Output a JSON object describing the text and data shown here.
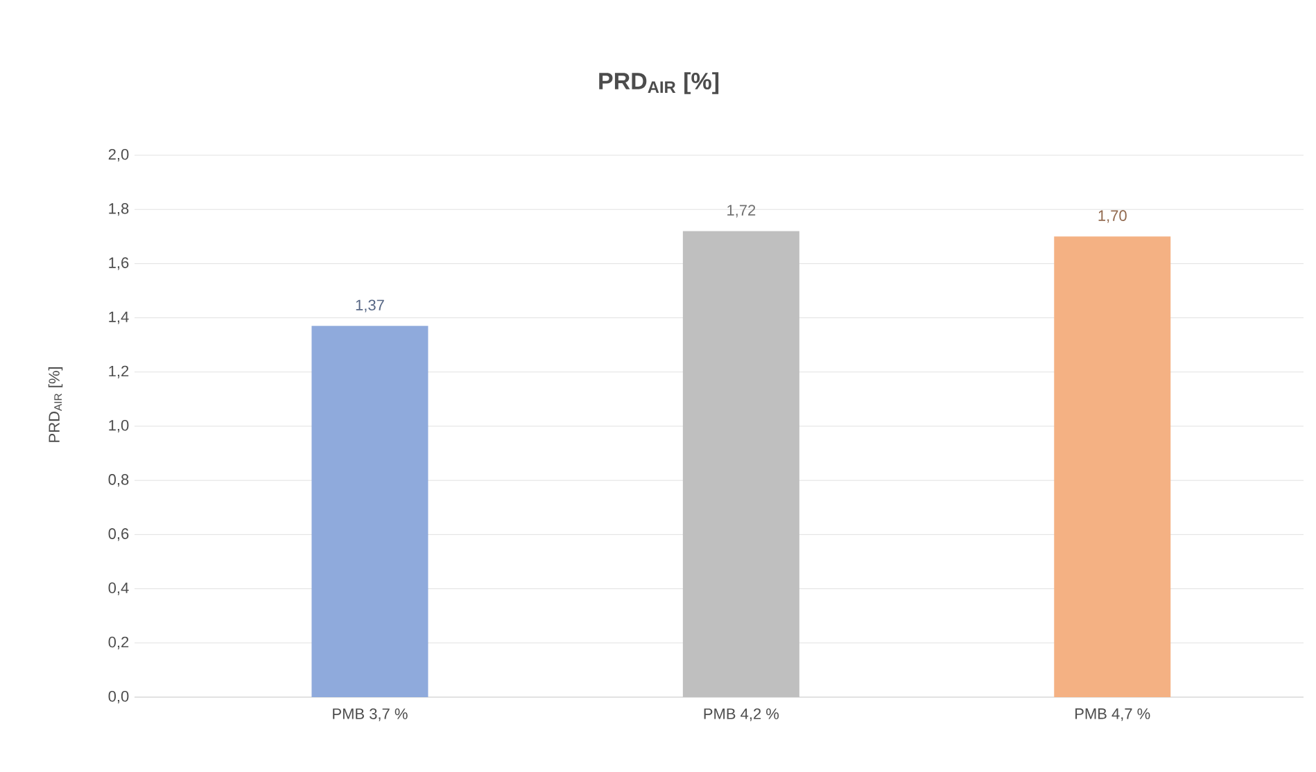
{
  "chart_data": {
    "type": "bar",
    "title": "PRD$_{AIR}$ [%]",
    "ylabel": "PRD$_{AIR}$ [%]",
    "categories": [
      "PMB 3,7 %",
      "PMB 4,2 %",
      "PMB 4,7 %"
    ],
    "values": [
      1.37,
      1.72,
      1.7
    ],
    "colors": [
      "#8faadc",
      "#bfbfbf",
      "#f4b183"
    ],
    "value_labels": [
      "1,37",
      "1,72",
      "1,70"
    ],
    "ylim": [
      0,
      2.0
    ],
    "yticks": [
      {
        "value": 0,
        "label": "0,0"
      },
      {
        "value": 0.2,
        "label": "0,2"
      },
      {
        "value": 0.4,
        "label": "0,4"
      },
      {
        "value": 0.6,
        "label": "0,6"
      },
      {
        "value": 0.8,
        "label": "0,8"
      },
      {
        "value": 1.0,
        "label": "1,0"
      },
      {
        "value": 1.2,
        "label": "1,2"
      },
      {
        "value": 1.4,
        "label": "1,4"
      },
      {
        "value": 1.6,
        "label": "1,6"
      },
      {
        "value": 1.8,
        "label": "1,8"
      },
      {
        "value": 2.0,
        "label": "2,0"
      }
    ],
    "grid": "y"
  }
}
